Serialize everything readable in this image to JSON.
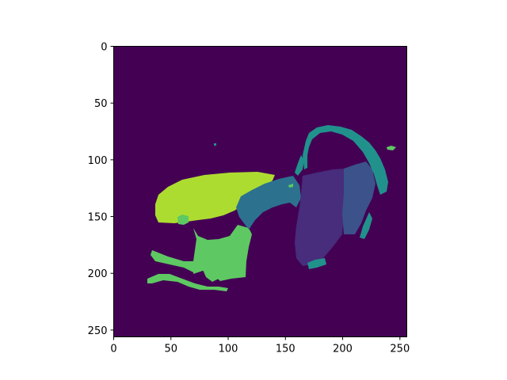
{
  "chart_data": {
    "type": "heatmap",
    "title": "",
    "xlabel": "",
    "ylabel": "",
    "xlim": [
      0,
      256
    ],
    "ylim": [
      256,
      0
    ],
    "x_ticks": [
      "0",
      "50",
      "100",
      "150",
      "200",
      "250"
    ],
    "y_ticks": [
      "0",
      "50",
      "100",
      "150",
      "200",
      "250"
    ],
    "colormap": "viridis",
    "background_color": "#440154",
    "segments": [
      {
        "label_value": 1,
        "color": "#472d7b"
      },
      {
        "label_value": 2,
        "color": "#3b528b"
      },
      {
        "label_value": 3,
        "color": "#2c728e"
      },
      {
        "label_value": 4,
        "color": "#21918c"
      },
      {
        "label_value": 5,
        "color": "#28ae80"
      },
      {
        "label_value": 6,
        "color": "#5ec962"
      },
      {
        "label_value": 7,
        "color": "#addc30"
      }
    ]
  }
}
